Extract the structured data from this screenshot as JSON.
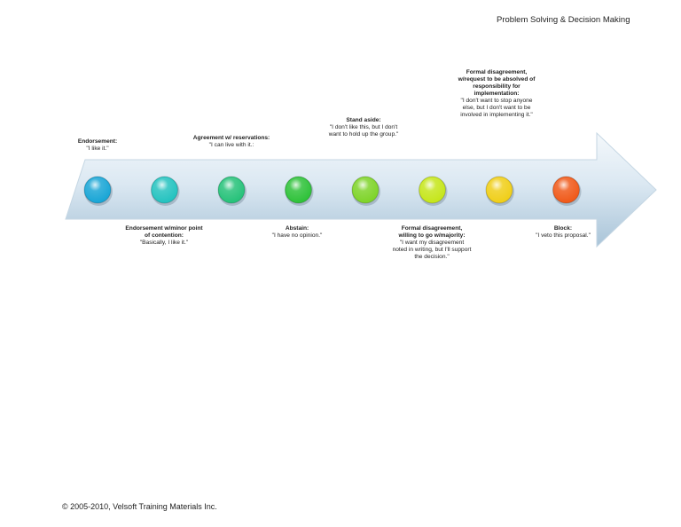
{
  "header": {
    "title": "Problem Solving & Decision Making"
  },
  "footer": {
    "copyright": "© 2005-2010, Velsoft Training Materials Inc."
  },
  "colors": {
    "arrow_light": "#e3eef6",
    "arrow_dark": "#a9c4d8",
    "spectrum": [
      "#1aa6d6",
      "#25c3c0",
      "#27c27a",
      "#2fc23a",
      "#7fd42a",
      "#c6e61c",
      "#f0cf1a",
      "#f05a1a"
    ]
  },
  "stages": [
    {
      "title": "Endorsement:",
      "lines": [
        "\"I like it.\""
      ]
    },
    {
      "title": "Endorsement w/minor point of contention:",
      "lines": [
        "\"Basically, I like it.\""
      ]
    },
    {
      "title": "Agreement w/ reservations:",
      "lines": [
        "\"I can live with it.:"
      ]
    },
    {
      "title": "Abstain:",
      "lines": [
        "\"I have no opinion.\""
      ]
    },
    {
      "title": "Stand aside:",
      "lines": [
        "\"I don't like this, but I don't want to hold up the group.\""
      ]
    },
    {
      "title": "Formal disagreement, willing to go w/majority:",
      "lines": [
        "\"I want my disagreement noted in writing, but I'll support the decision.\""
      ]
    },
    {
      "title": "Formal disagreement, w/request to be absolved of responsibility for implementation:",
      "lines": [
        "\"I don't want to stop anyone else, but I don't want to be involved in implementing it.\""
      ]
    },
    {
      "title": "Block:",
      "lines": [
        "\"I veto this proposal.\""
      ]
    }
  ]
}
